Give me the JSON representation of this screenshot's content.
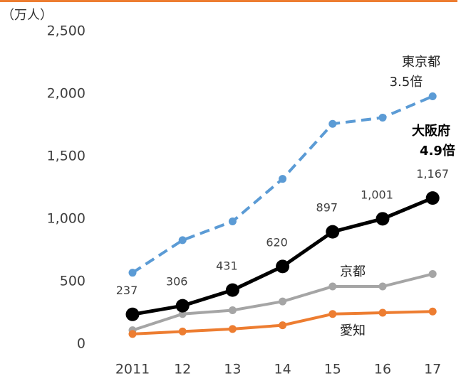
{
  "chart_data": {
    "type": "line",
    "y_axis_label": "（万人）",
    "categories": [
      "2011",
      "12",
      "13",
      "14",
      "15",
      "16",
      "17"
    ],
    "series": [
      {
        "name": "東京都",
        "color": "#5b9bd5",
        "dashed": true,
        "values": [
          570,
          830,
          980,
          1320,
          1760,
          1810,
          1980
        ]
      },
      {
        "name": "京都",
        "color": "#a5a5a5",
        "values": [
          110,
          240,
          270,
          340,
          460,
          460,
          560
        ]
      },
      {
        "name": "愛知",
        "color": "#ed7d31",
        "values": [
          80,
          100,
          120,
          150,
          240,
          250,
          260
        ]
      },
      {
        "name": "大阪府",
        "color": "#000000",
        "values": [
          237,
          306,
          431,
          620,
          897,
          1001,
          1167
        ],
        "value_labels": [
          "237",
          "306",
          "431",
          "620",
          "897",
          "1,001",
          "1,167"
        ]
      }
    ],
    "annotations": [
      "3.5倍",
      "4.9倍"
    ],
    "ylim": [
      0,
      2500
    ],
    "yticks": [
      0,
      500,
      {
        "value": 1000,
        "label": "1,000"
      },
      {
        "value": 1500,
        "label": "1,500"
      },
      {
        "value": 2000,
        "label": "2,000"
      },
      {
        "value": 2500,
        "label": "2,500"
      }
    ]
  }
}
